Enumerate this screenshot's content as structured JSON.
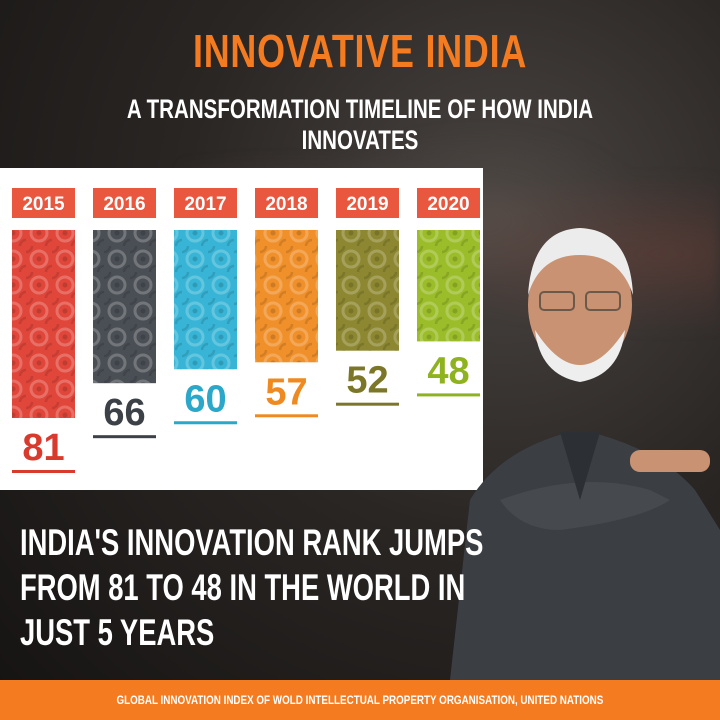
{
  "header": {
    "title": "INNOVATIVE INDIA",
    "subtitle": "A TRANSFORMATION TIMELINE OF HOW INDIA INNOVATES"
  },
  "headline": {
    "lines": [
      "INDIA'S INNOVATION RANK JUMPS",
      "FROM 81 TO 48 IN THE WORLD IN",
      "JUST 5 YEARS"
    ]
  },
  "footer": {
    "source": "GLOBAL INNOVATION INDEX OF WOLD INTELLECTUAL PROPERTY ORGANISATION, UNITED NATIONS"
  },
  "colors": {
    "accent": "#f47b20",
    "year_badge": "#e9573f"
  },
  "chart_data": {
    "type": "bar",
    "categories": [
      "2015",
      "2016",
      "2017",
      "2018",
      "2019",
      "2020"
    ],
    "values": [
      81,
      66,
      60,
      57,
      52,
      48
    ],
    "bar_colors": [
      "#e0463a",
      "#4a4f55",
      "#38b5d6",
      "#f0902a",
      "#8c8730",
      "#9bbd2a"
    ],
    "label_colors": [
      "#d93a2e",
      "#3c4148",
      "#2aa7c9",
      "#ee8a20",
      "#7b7628",
      "#8fb31f"
    ],
    "title": "",
    "xlabel": "",
    "ylabel": "",
    "ylim": [
      0,
      81
    ]
  }
}
